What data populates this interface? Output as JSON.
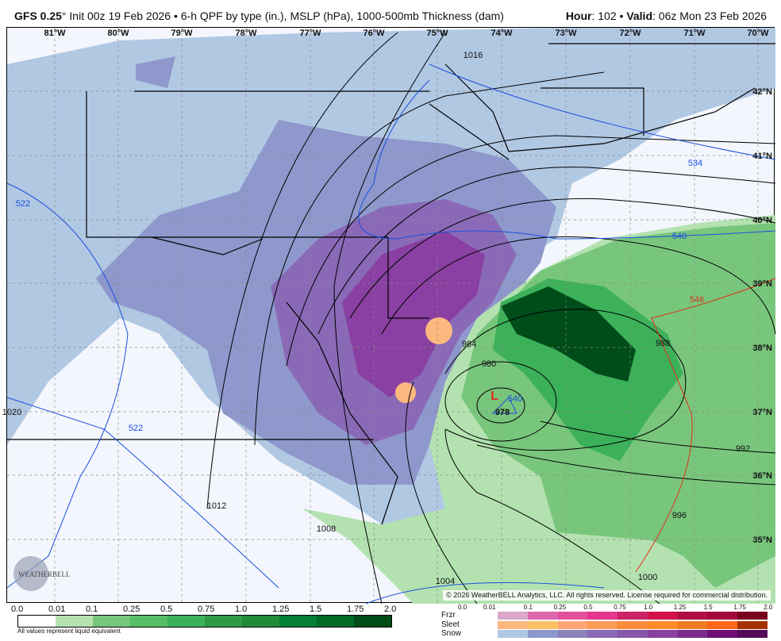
{
  "header": {
    "model": "GFS 0.25",
    "degree": "°",
    "init": " Init 00z 19 Feb 2026 • 6-h QPF by type (in.), MSLP (hPa), 1000-500mb Thickness (dam)",
    "hour_label": "Hour",
    "hour_value": ": 102 • ",
    "valid_label": "Valid",
    "valid_value": ": 06z Mon 23 Feb 2026"
  },
  "map": {
    "longitudes": [
      "81°W",
      "80°W",
      "79°W",
      "78°W",
      "77°W",
      "76°W",
      "75°W",
      "74°W",
      "73°W",
      "72°W",
      "71°W",
      "70°W"
    ],
    "latitudes": [
      "42°N",
      "41°N",
      "40°N",
      "39°N",
      "38°N",
      "37°N",
      "36°N",
      "35°N"
    ],
    "isobar_labels": [
      "1016",
      "988",
      "980",
      "984",
      "978",
      "992",
      "1012",
      "996",
      "1008",
      "1004",
      "1000",
      "1020"
    ],
    "thickness_labels": [
      "534",
      "522",
      "540",
      "540",
      "522"
    ],
    "thickness_546_label": "546",
    "low_marker": "L",
    "copyright": "© 2026 WeatherBELL Analytics, LLC. All rights reserved. License required for commercial distribution.",
    "logo_text": "WeatherBELL"
  },
  "legend_rain": {
    "ticks": [
      "0.0",
      "0.01",
      "0.1",
      "0.25",
      "0.5",
      "0.75",
      "1.0",
      "1.25",
      "1.5",
      "1.75",
      "2.0"
    ],
    "colors": [
      "#ffffff",
      "#b3e2b0",
      "#78c67c",
      "#56bf66",
      "#3cb15a",
      "#2e9a48",
      "#228b3a",
      "#037f36",
      "#006b25",
      "#004d1a"
    ],
    "note": "All values represent liquid equivalent"
  },
  "legend_ptype": {
    "ticks": [
      "0.0",
      "0.01",
      "0.1",
      "0.25",
      "0.5",
      "0.75",
      "1.0",
      "1.25",
      "1.5",
      "1.75",
      "2.0"
    ],
    "rows": [
      {
        "label": "Frzr",
        "colors": [
          "#dba8cb",
          "#df67b0",
          "#e2509c",
          "#e63590",
          "#cc2266",
          "#d11249",
          "#b00c46",
          "#a2043e",
          "#7b001e"
        ]
      },
      {
        "label": "Sleet",
        "colors": [
          "#fdb87f",
          "#fec065",
          "#fda577",
          "#f99a57",
          "#fd8b3c",
          "#fe8a2a",
          "#f07b22",
          "#fe6818",
          "#a63100"
        ]
      },
      {
        "label": "Snow",
        "colors": [
          "#b1c8e3",
          "#8e98cc",
          "#8b82b9",
          "#8a6ab7",
          "#8757a8",
          "#8940a2",
          "#7d2a8e",
          "#6f1076",
          "#530b57"
        ]
      }
    ]
  }
}
